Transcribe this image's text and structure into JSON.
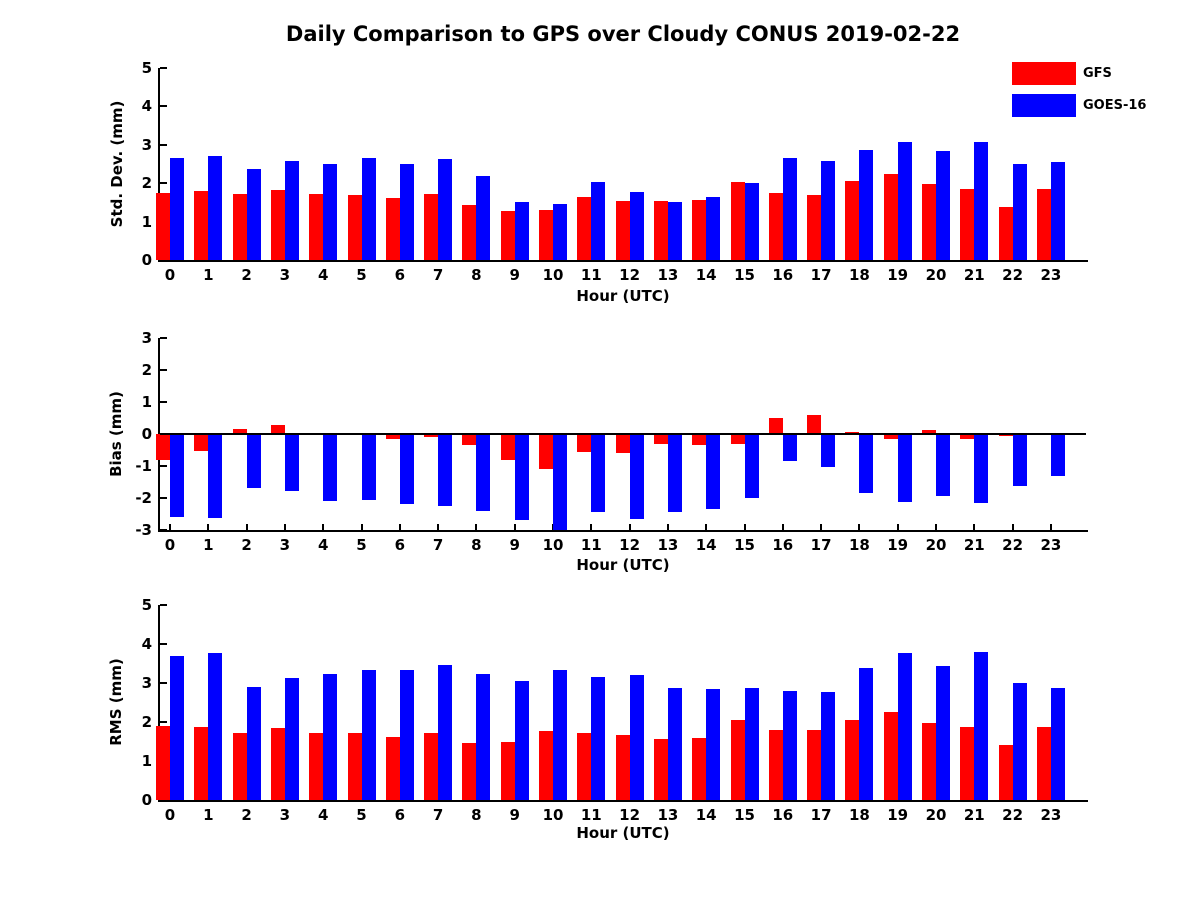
{
  "title": "Daily Comparison to GPS over Cloudy CONUS 2019-02-22",
  "xlabel": "Hour (UTC)",
  "hours": [
    "0",
    "1",
    "2",
    "3",
    "4",
    "5",
    "6",
    "7",
    "8",
    "9",
    "10",
    "11",
    "12",
    "13",
    "14",
    "15",
    "16",
    "17",
    "18",
    "19",
    "20",
    "21",
    "22",
    "23"
  ],
  "colors": {
    "gfs": "#ff0000",
    "goes16": "#0000ff",
    "axis": "#000000",
    "text": "#000000",
    "background": "#ffffff"
  },
  "legend": {
    "position": "top-right",
    "items": [
      {
        "label": "GFS",
        "color": "#ff0000"
      },
      {
        "label": "GOES-16",
        "color": "#0000ff"
      }
    ]
  },
  "chart_data": [
    {
      "type": "bar",
      "ylabel": "Std. Dev. (mm)",
      "xlabel": "Hour (UTC)",
      "ylim": [
        0,
        5
      ],
      "yticks": [
        0,
        1,
        2,
        3,
        4,
        5
      ],
      "grid": false,
      "categories": [
        0,
        1,
        2,
        3,
        4,
        5,
        6,
        7,
        8,
        9,
        10,
        11,
        12,
        13,
        14,
        15,
        16,
        17,
        18,
        19,
        20,
        21,
        22,
        23
      ],
      "series": [
        {
          "name": "GFS",
          "color": "#ff0000",
          "values": [
            1.75,
            1.8,
            1.72,
            1.82,
            1.72,
            1.68,
            1.61,
            1.72,
            1.43,
            1.28,
            1.3,
            1.64,
            1.54,
            1.53,
            1.55,
            2.02,
            1.75,
            1.68,
            2.05,
            2.24,
            1.97,
            1.85,
            1.37,
            1.85
          ]
        },
        {
          "name": "GOES-16",
          "color": "#0000ff",
          "values": [
            2.66,
            2.71,
            2.36,
            2.59,
            2.5,
            2.66,
            2.5,
            2.64,
            2.19,
            1.5,
            1.47,
            2.02,
            1.77,
            1.5,
            1.63,
            2.0,
            2.66,
            2.59,
            2.86,
            3.08,
            2.84,
            3.07,
            2.5,
            2.55
          ]
        }
      ]
    },
    {
      "type": "bar",
      "ylabel": "Bias (mm)",
      "xlabel": "Hour (UTC)",
      "ylim": [
        -3,
        3
      ],
      "yticks": [
        -3,
        -2,
        -1,
        0,
        1,
        2,
        3
      ],
      "grid": false,
      "zero_line": true,
      "categories": [
        0,
        1,
        2,
        3,
        4,
        5,
        6,
        7,
        8,
        9,
        10,
        11,
        12,
        13,
        14,
        15,
        16,
        17,
        18,
        19,
        20,
        21,
        22,
        23
      ],
      "series": [
        {
          "name": "GFS",
          "color": "#ff0000",
          "values": [
            -0.8,
            -0.52,
            0.16,
            0.28,
            0.0,
            0.0,
            -0.16,
            -0.1,
            -0.35,
            -0.8,
            -1.1,
            -0.55,
            -0.6,
            -0.3,
            -0.35,
            -0.3,
            0.5,
            0.6,
            0.07,
            -0.15,
            0.12,
            -0.16,
            -0.05,
            0.0
          ]
        },
        {
          "name": "GOES-16",
          "color": "#0000ff",
          "values": [
            -2.6,
            -2.62,
            -1.7,
            -1.78,
            -2.1,
            -2.05,
            -2.2,
            -2.26,
            -2.4,
            -2.7,
            -3.0,
            -2.45,
            -2.66,
            -2.45,
            -2.35,
            -2.0,
            -0.85,
            -1.03,
            -1.85,
            -2.12,
            -1.95,
            -2.16,
            -1.63,
            -1.3
          ]
        }
      ]
    },
    {
      "type": "bar",
      "ylabel": "RMS (mm)",
      "xlabel": "Hour (UTC)",
      "ylim": [
        0,
        5
      ],
      "yticks": [
        0,
        1,
        2,
        3,
        4,
        5
      ],
      "grid": false,
      "categories": [
        0,
        1,
        2,
        3,
        4,
        5,
        6,
        7,
        8,
        9,
        10,
        11,
        12,
        13,
        14,
        15,
        16,
        17,
        18,
        19,
        20,
        21,
        22,
        23
      ],
      "series": [
        {
          "name": "GFS",
          "color": "#ff0000",
          "values": [
            1.9,
            1.88,
            1.73,
            1.85,
            1.73,
            1.71,
            1.62,
            1.73,
            1.47,
            1.5,
            1.76,
            1.73,
            1.66,
            1.57,
            1.6,
            2.06,
            1.79,
            1.8,
            2.06,
            2.26,
            1.98,
            1.86,
            1.4,
            1.86
          ]
        },
        {
          "name": "GOES-16",
          "color": "#0000ff",
          "values": [
            3.7,
            3.76,
            2.9,
            3.12,
            3.23,
            3.34,
            3.34,
            3.47,
            3.23,
            3.06,
            3.33,
            3.15,
            3.21,
            2.86,
            2.84,
            2.86,
            2.8,
            2.77,
            3.38,
            3.76,
            3.43,
            3.79,
            3.01,
            2.88
          ]
        }
      ]
    }
  ]
}
